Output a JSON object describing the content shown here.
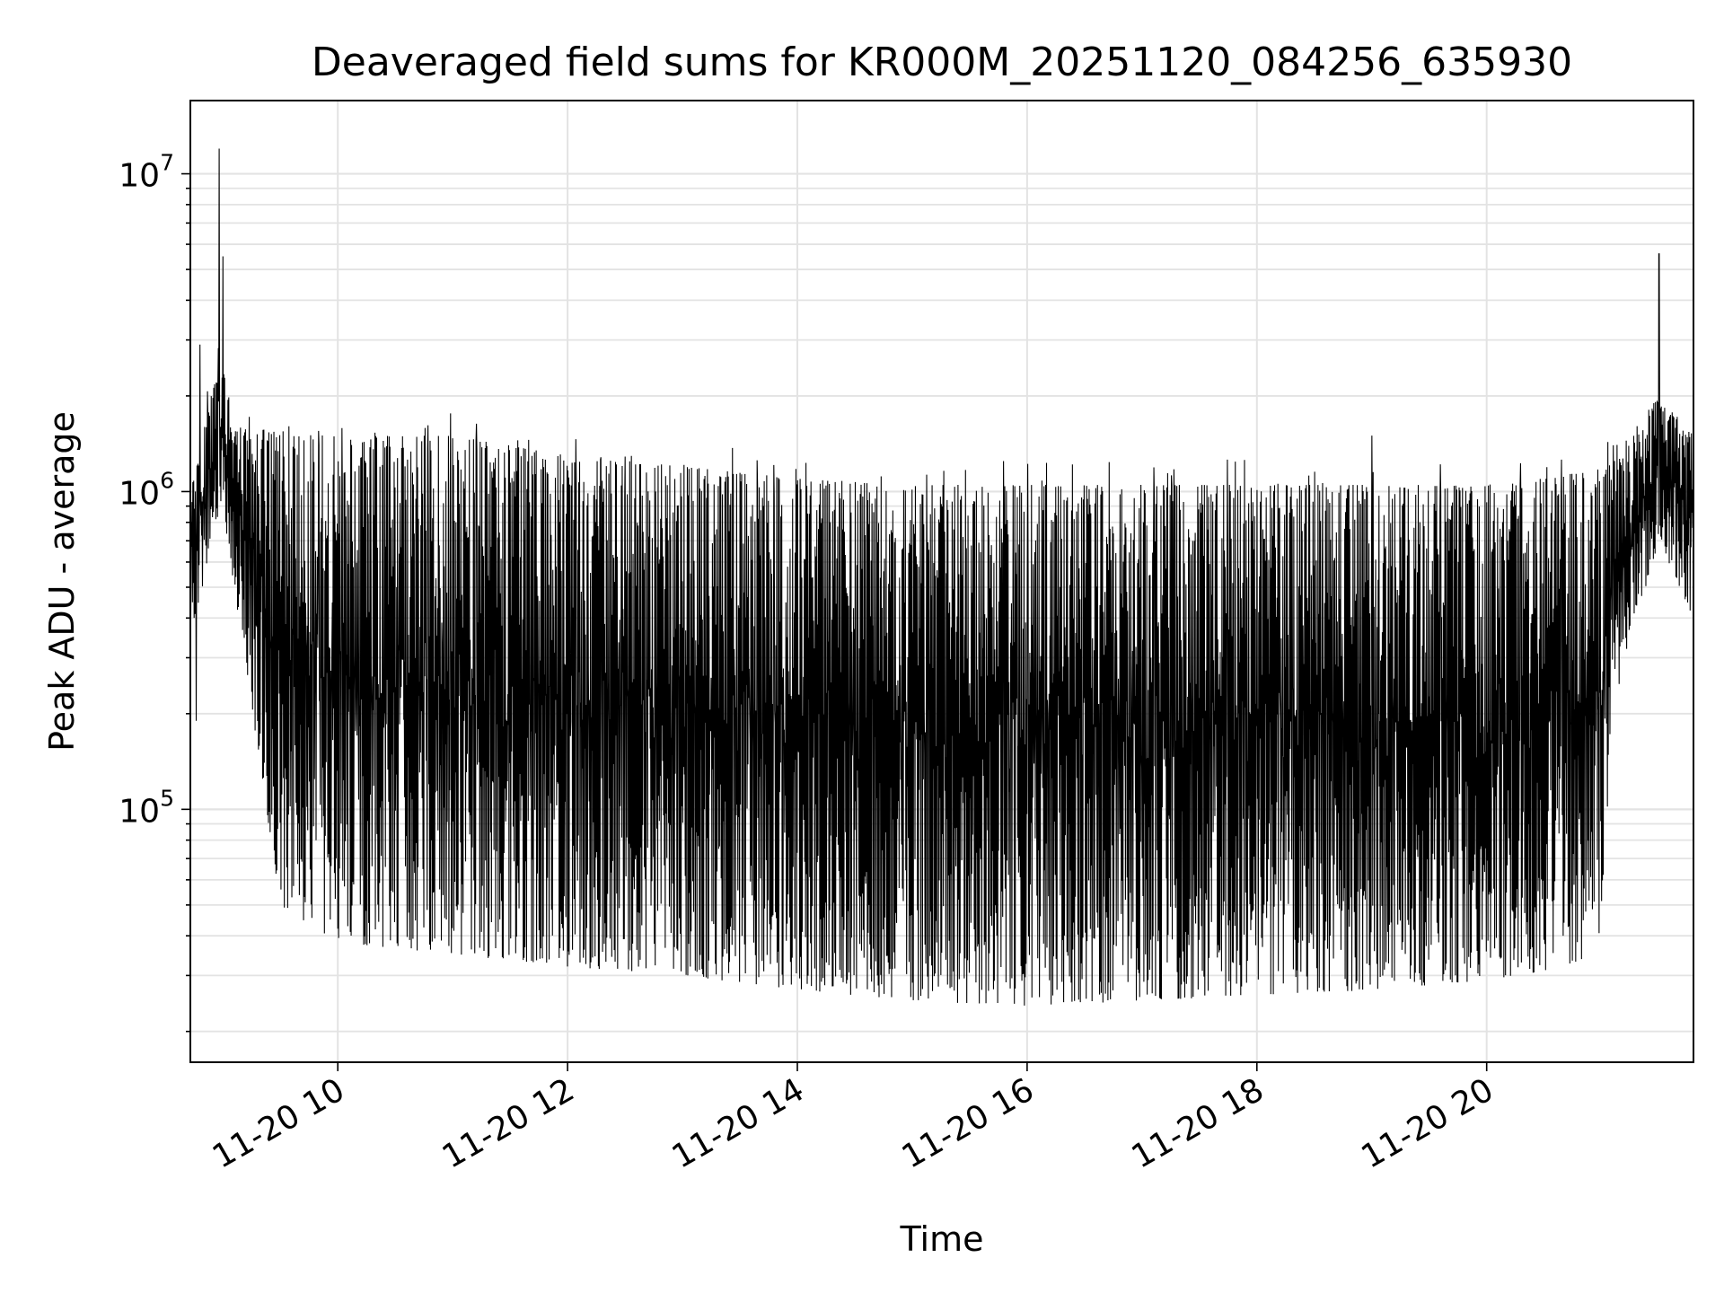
{
  "chart_data": {
    "type": "line",
    "title": "Deaveraged field sums for KR000M_20251120_084256_635930",
    "xlabel": "Time",
    "ylabel": "Peak ADU - average",
    "xscale": "time",
    "yscale": "log",
    "xlim": [
      "2025-11-20 08:43",
      "2025-11-20 21:48"
    ],
    "ylim": [
      16000,
      17000000
    ],
    "x_ticks": [
      "11-20 10",
      "11-20 12",
      "11-20 14",
      "11-20 16",
      "11-20 18",
      "11-20 20"
    ],
    "y_ticks": [
      {
        "base": "10",
        "exp": "5",
        "value": 100000
      },
      {
        "base": "10",
        "exp": "6",
        "value": 1000000
      },
      {
        "base": "10",
        "exp": "7",
        "value": 10000000
      }
    ],
    "grid": true,
    "line_color": "#000000",
    "series": [
      {
        "x": [
          "08:43",
          "09:00",
          "09:04",
          "09:30",
          "10:00",
          "11:00",
          "12:00",
          "13:00",
          "14:00",
          "15:00",
          "16:00",
          "17:00",
          "18:00",
          "19:00",
          "20:00",
          "20:30",
          "21:00",
          "21:05",
          "21:30",
          "21:48"
        ],
        "upper": [
          1000000,
          3000000,
          1600000,
          1550000,
          1500000,
          1500000,
          1300000,
          1200000,
          1100000,
          1050000,
          1050000,
          1050000,
          1050000,
          1050000,
          1050000,
          1100000,
          1200000,
          1250000,
          2000000,
          1500000
        ],
        "lower": [
          350000,
          900000,
          600000,
          50000,
          38000,
          35000,
          32000,
          30000,
          27000,
          25000,
          24000,
          25000,
          26000,
          27000,
          29000,
          31000,
          35000,
          200000,
          700000,
          400000
        ],
        "spikes": [
          {
            "x": "08:58",
            "y": 12000000
          },
          {
            "x": "09:00",
            "y": 5500000
          },
          {
            "x": "08:48",
            "y": 2900000
          },
          {
            "x": "21:30",
            "y": 5600000
          },
          {
            "x": "19:00",
            "y": 1500000
          },
          {
            "x": "08:46",
            "y": 190000
          }
        ]
      }
    ]
  }
}
